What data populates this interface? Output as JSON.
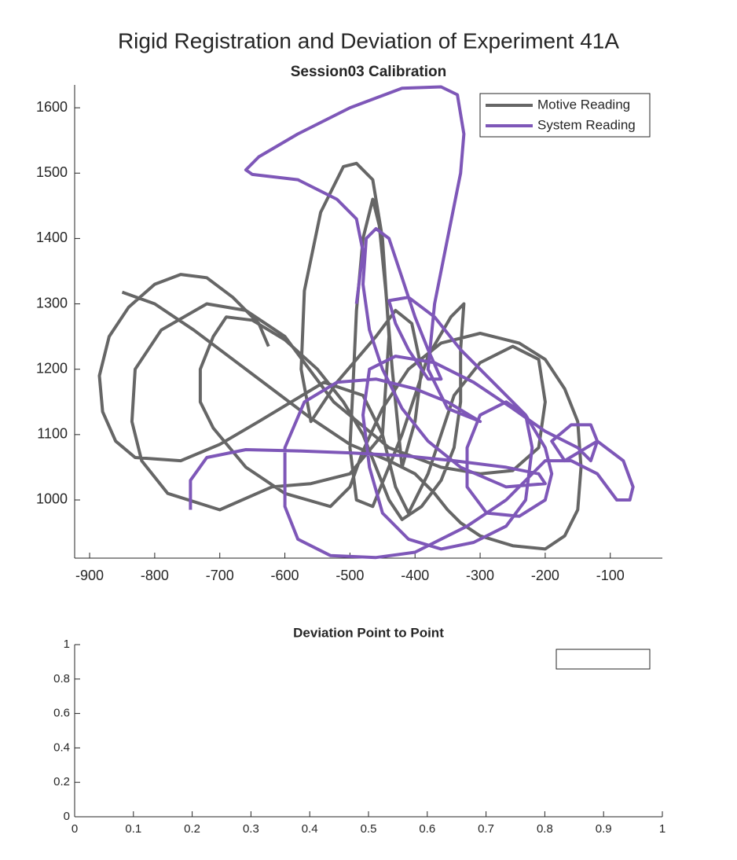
{
  "figure_title": "Rigid Registration and Deviation of Experiment 41A",
  "chart_data": [
    {
      "type": "line",
      "title": "Session03 Calibration",
      "xlim": [
        -923,
        -20
      ],
      "ylim": [
        911,
        1635
      ],
      "xticks": [
        -900,
        -800,
        -700,
        -600,
        -500,
        -400,
        -300,
        -200,
        -100
      ],
      "yticks": [
        1000,
        1100,
        1200,
        1300,
        1400,
        1500,
        1600
      ],
      "legend": "upper right",
      "series": [
        {
          "name": "Motive Reading",
          "color": "#666666",
          "x": [
            -850,
            -800,
            -740,
            -680,
            -620,
            -560,
            -500,
            -440,
            -400,
            -370,
            -350,
            -330,
            -300,
            -250,
            -200,
            -170,
            -150,
            -145,
            -150,
            -170,
            -200,
            -240,
            -300,
            -360,
            -410,
            -450,
            -480,
            -500,
            -530,
            -600,
            -660,
            -710,
            -730,
            -730,
            -710,
            -690,
            -650,
            -600,
            -550,
            -510,
            -480,
            -460,
            -440,
            -420,
            -390,
            -360,
            -340,
            -330,
            -330,
            -325,
            -345,
            -380,
            -420,
            -465,
            -490,
            -500,
            -495,
            -490,
            -480,
            -465,
            -455,
            -445,
            -435,
            -420,
            -400,
            -390,
            -405,
            -430,
            -460,
            -520,
            -560,
            -575,
            -570,
            -545,
            -510,
            -490,
            -465,
            -450,
            -440,
            -450,
            -500,
            -560,
            -620,
            -700,
            -780,
            -820,
            -835,
            -830,
            -790,
            -720,
            -660,
            -600,
            -525,
            -440,
            -360,
            -300,
            -250,
            -210,
            -200,
            -210,
            -250,
            -300,
            -340,
            -380,
            -410,
            -430,
            -450,
            -480,
            -540,
            -640,
            -700,
            -760,
            -830,
            -860,
            -880,
            -885,
            -870,
            -840,
            -800,
            -760,
            -720,
            -680,
            -640,
            -625
          ],
          "values": [
            1318,
            1300,
            1260,
            1215,
            1170,
            1125,
            1085,
            1060,
            1040,
            1010,
            985,
            965,
            945,
            930,
            925,
            945,
            985,
            1050,
            1120,
            1170,
            1215,
            1240,
            1255,
            1240,
            1200,
            1140,
            1075,
            1020,
            990,
            1010,
            1050,
            1110,
            1150,
            1200,
            1250,
            1280,
            1275,
            1245,
            1200,
            1150,
            1100,
            1050,
            1000,
            970,
            990,
            1030,
            1080,
            1150,
            1230,
            1300,
            1280,
            1220,
            1100,
            990,
            1000,
            1080,
            1180,
            1290,
            1400,
            1460,
            1420,
            1320,
            1200,
            1050,
            1120,
            1200,
            1270,
            1290,
            1250,
            1180,
            1120,
            1200,
            1320,
            1440,
            1510,
            1515,
            1490,
            1400,
            1250,
            1100,
            1040,
            1025,
            1020,
            985,
            1010,
            1060,
            1120,
            1200,
            1260,
            1300,
            1290,
            1250,
            1150,
            1080,
            1050,
            1040,
            1045,
            1080,
            1150,
            1215,
            1235,
            1210,
            1160,
            1040,
            980,
            1020,
            1100,
            1160,
            1180,
            1120,
            1085,
            1060,
            1065,
            1090,
            1135,
            1190,
            1250,
            1295,
            1330,
            1345,
            1340,
            1310,
            1270,
            1235
          ]
        },
        {
          "name": "System Reading",
          "color": "#7e57b8",
          "x": [
            -745,
            -745,
            -720,
            -660,
            -580,
            -500,
            -420,
            -340,
            -260,
            -210,
            -200,
            -260,
            -330,
            -380,
            -420,
            -450,
            -470,
            -480,
            -475,
            -460,
            -440,
            -420,
            -400,
            -380,
            -360,
            -380,
            -410,
            -430,
            -440,
            -410,
            -370,
            -330,
            -280,
            -230,
            -200,
            -190,
            -200,
            -240,
            -290,
            -320,
            -320,
            -300,
            -260,
            -230,
            -220,
            -230,
            -260,
            -310,
            -360,
            -410,
            -450,
            -470,
            -480,
            -470,
            -430,
            -370,
            -310,
            -250,
            -200,
            -150,
            -130,
            -120,
            -130,
            -160,
            -190,
            -170,
            -120,
            -80,
            -65,
            -70,
            -90,
            -120,
            -160,
            -200,
            -260,
            -320,
            -400,
            -460,
            -530,
            -580,
            -600,
            -600,
            -570,
            -520,
            -460,
            -400,
            -350,
            -300,
            -350,
            -380,
            -370,
            -350,
            -330,
            -325,
            -335,
            -360,
            -420,
            -500,
            -580,
            -640,
            -660,
            -650,
            -580,
            -520,
            -490,
            -480,
            -490
          ],
          "values": [
            985,
            1030,
            1065,
            1077,
            1075,
            1072,
            1068,
            1060,
            1050,
            1040,
            1025,
            1020,
            1050,
            1090,
            1140,
            1200,
            1260,
            1330,
            1400,
            1415,
            1400,
            1340,
            1280,
            1230,
            1185,
            1185,
            1230,
            1270,
            1305,
            1310,
            1280,
            1230,
            1180,
            1130,
            1080,
            1040,
            1000,
            975,
            980,
            1020,
            1080,
            1130,
            1150,
            1130,
            1080,
            1000,
            960,
            935,
            925,
            940,
            980,
            1050,
            1130,
            1200,
            1220,
            1210,
            1180,
            1140,
            1105,
            1080,
            1060,
            1090,
            1115,
            1115,
            1090,
            1060,
            1090,
            1060,
            1020,
            1000,
            1000,
            1040,
            1060,
            1060,
            1000,
            960,
            920,
            912,
            915,
            940,
            990,
            1080,
            1150,
            1180,
            1185,
            1170,
            1150,
            1120,
            1140,
            1200,
            1300,
            1400,
            1500,
            1560,
            1620,
            1632,
            1630,
            1600,
            1560,
            1525,
            1505,
            1498,
            1490,
            1460,
            1430,
            1380,
            1300
          ]
        }
      ]
    },
    {
      "type": "line",
      "title": "Deviation Point to Point",
      "xlim": [
        0,
        1
      ],
      "ylim": [
        0,
        1
      ],
      "xticks": [
        0,
        0.1,
        0.2,
        0.3,
        0.4,
        0.5,
        0.6,
        0.7,
        0.8,
        0.9,
        1
      ],
      "yticks": [
        0,
        0.2,
        0.4,
        0.6,
        0.8,
        1
      ],
      "legend": "upper right",
      "series": []
    }
  ]
}
